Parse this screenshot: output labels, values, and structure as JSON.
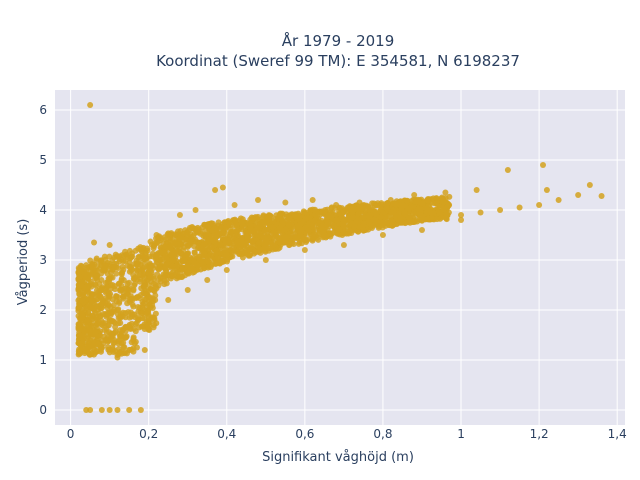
{
  "chart_data": {
    "type": "scatter",
    "title": [
      "År 1979 - 2019",
      "Koordinat (Sweref 99 TM): E 354581, N 6198237"
    ],
    "xlabel": "Signifikant våghöjd (m)",
    "ylabel": "Vågperiod (s)",
    "xlim": [
      -0.04,
      1.42
    ],
    "ylim": [
      -0.3,
      6.4
    ],
    "x_ticks": [
      0,
      0.2,
      0.4,
      0.6,
      0.8,
      1,
      1.2,
      1.4
    ],
    "x_tick_labels": [
      "0",
      "0,2",
      "0,4",
      "0,6",
      "0,8",
      "1",
      "1,2",
      "1,4"
    ],
    "y_ticks": [
      0,
      1,
      2,
      3,
      4,
      5,
      6
    ],
    "y_tick_labels": [
      "0",
      "1",
      "2",
      "3",
      "4",
      "5",
      "6"
    ],
    "grid": true,
    "legend": "none",
    "marker_color": "#D4A21F",
    "background_color": "#E5E5F0",
    "series": [
      {
        "x": [
          0.05,
          0.06,
          0.08,
          0.1,
          0.12,
          0.15,
          0.18,
          0.2,
          0.25,
          0.3,
          0.35,
          0.4,
          0.45,
          0.5,
          0.55,
          0.6,
          0.65,
          0.7,
          0.75,
          0.8,
          0.85,
          0.9,
          0.95,
          1.0,
          1.05,
          1.1,
          1.15,
          1.2,
          1.25,
          1.3,
          1.36,
          0.04,
          0.05,
          0.08,
          0.1,
          0.12,
          0.15,
          0.18,
          0.05,
          0.04,
          0.06,
          0.1,
          0.12,
          0.15,
          0.17,
          0.2,
          0.25,
          0.3,
          0.35,
          0.4,
          0.5,
          0.6,
          0.7,
          0.8,
          0.9,
          1.0,
          1.12,
          1.21,
          1.33,
          0.37,
          0.39,
          0.12,
          0.06,
          0.09,
          0.14,
          0.19,
          0.22,
          0.28,
          0.32,
          0.42,
          0.48,
          0.55,
          0.62,
          0.68,
          0.74,
          0.82,
          0.88,
          0.96,
          1.04,
          1.22
        ],
        "y": [
          1.6,
          1.5,
          1.7,
          1.8,
          2.0,
          2.2,
          2.3,
          2.5,
          2.7,
          2.9,
          3.0,
          3.1,
          3.2,
          3.3,
          3.35,
          3.45,
          3.5,
          3.55,
          3.6,
          3.7,
          3.75,
          3.8,
          3.85,
          3.9,
          3.95,
          4.0,
          4.05,
          4.1,
          4.2,
          4.3,
          4.28,
          0.0,
          0.0,
          0.0,
          0.0,
          0.0,
          0.0,
          0.0,
          6.1,
          2.8,
          3.35,
          3.3,
          1.1,
          1.2,
          1.25,
          1.8,
          2.2,
          2.4,
          2.6,
          2.8,
          3.0,
          3.2,
          3.3,
          3.5,
          3.6,
          3.8,
          4.8,
          4.9,
          4.5,
          4.4,
          4.45,
          1.05,
          1.3,
          1.4,
          1.15,
          1.2,
          3.5,
          3.9,
          4.0,
          4.1,
          4.2,
          4.15,
          4.2,
          4.1,
          4.15,
          4.2,
          4.3,
          4.35,
          4.4,
          4.4
        ]
      }
    ]
  }
}
